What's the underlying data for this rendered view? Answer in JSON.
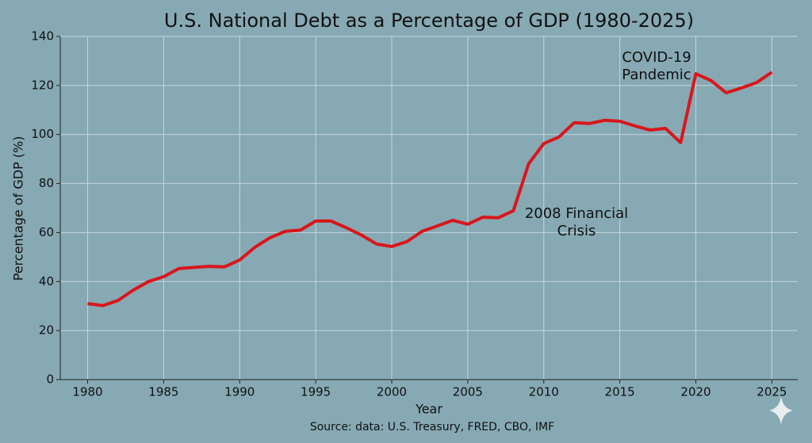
{
  "chart_data": {
    "type": "line",
    "title": "U.S. National Debt as a Percentage of GDP (1980-2025)",
    "xlabel": "Year",
    "ylabel": "Percentage of GDP (%)",
    "source": "Source: data: U.S. Treasury, FRED, CBO, IMF",
    "x": [
      1980,
      1981,
      1982,
      1983,
      1984,
      1985,
      1986,
      1987,
      1988,
      1989,
      1990,
      1991,
      1992,
      1993,
      1994,
      1995,
      1996,
      1997,
      1998,
      1999,
      2000,
      2001,
      2002,
      2003,
      2004,
      2005,
      2006,
      2007,
      2008,
      2009,
      2010,
      2011,
      2012,
      2013,
      2014,
      2015,
      2016,
      2017,
      2018,
      2019,
      2020,
      2021,
      2022,
      2023,
      2024,
      2025
    ],
    "series": [
      {
        "color": "#d9161b",
        "values": [
          31,
          30.2,
          32.3,
          36.5,
          40,
          42,
          45.3,
          45.8,
          46.2,
          46,
          48.8,
          54,
          57.9,
          60.5,
          61,
          64.7,
          64.7,
          62,
          59,
          55.3,
          54.3,
          56.3,
          60.5,
          62.7,
          65,
          63.4,
          66.3,
          66,
          68.9,
          88,
          96.3,
          99,
          104.8,
          104.5,
          105.8,
          105.4,
          103.5,
          101.8,
          102.5,
          96.7,
          124.8,
          122,
          117,
          119,
          121.2,
          125.4
        ]
      }
    ],
    "xlim": [
      1978.2,
      2026.7
    ],
    "ylim": [
      0,
      140
    ],
    "xticks": [
      1980,
      1985,
      1990,
      1995,
      2000,
      2005,
      2010,
      2015,
      2020,
      2025
    ],
    "yticks": [
      0,
      20,
      40,
      60,
      80,
      100,
      120,
      140
    ],
    "grid": true,
    "annotations": [
      {
        "lines": [
          "COVID-19",
          "Pandemic"
        ]
      },
      {
        "lines": [
          "2008 Financial",
          "Crisis"
        ]
      }
    ]
  }
}
